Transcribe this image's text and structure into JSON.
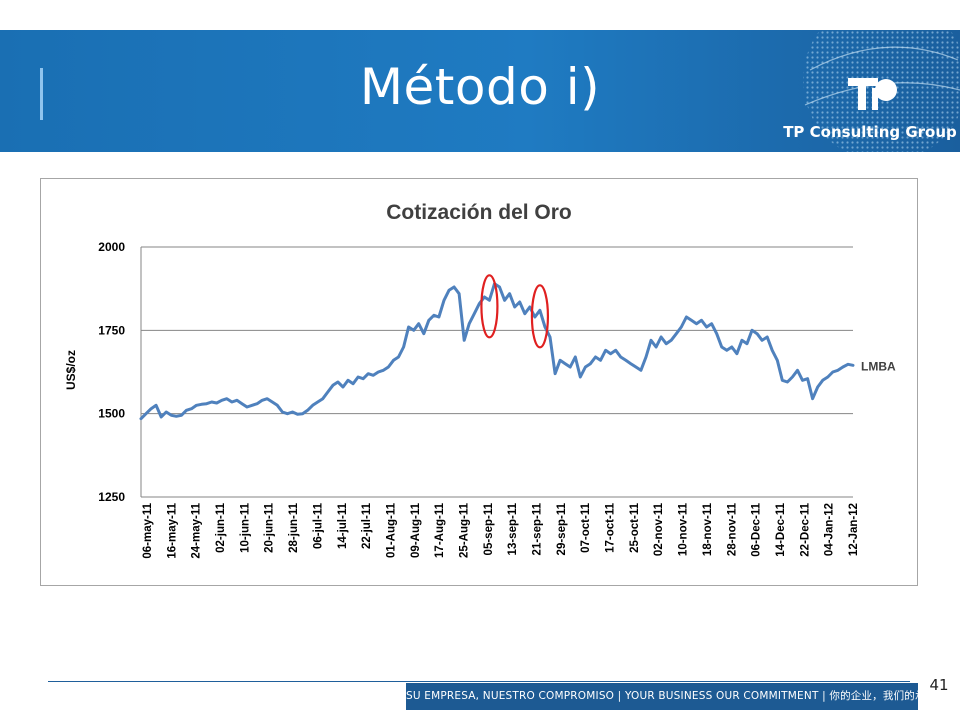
{
  "slide": {
    "title": "Método i)",
    "brand": "TP Consulting Group",
    "footer": "SU EMPRESA, NUESTRO COMPROMISO | YOUR BUSINESS OUR COMMITMENT | 你的企业，我们的承诺",
    "page_number": "41"
  },
  "colors": {
    "header_bg": "#1f7bc2",
    "series": "#4f81bd",
    "highlight": "#e02020",
    "footer_bg": "#1d5a93"
  },
  "chart_data": {
    "type": "line",
    "title": "Cotización del Oro",
    "ylabel": "US$/oz",
    "ylim": [
      1250,
      2000
    ],
    "yticks": [
      1250,
      1500,
      1750,
      2000
    ],
    "grid": true,
    "xtick_labels": [
      "06-may-11",
      "16-may-11",
      "24-may-11",
      "02-jun-11",
      "10-jun-11",
      "20-jun-11",
      "28-jun-11",
      "06-jul-11",
      "14-jul-11",
      "22-jul-11",
      "01-Aug-11",
      "09-Aug-11",
      "17-Aug-11",
      "25-Aug-11",
      "05-sep-11",
      "13-sep-11",
      "21-sep-11",
      "29-sep-11",
      "07-oct-11",
      "17-oct-11",
      "25-oct-11",
      "02-nov-11",
      "10-nov-11",
      "18-nov-11",
      "28-nov-11",
      "06-Dec-11",
      "14-Dec-11",
      "22-Dec-11",
      "04-Jan-12",
      "12-Jan-12"
    ],
    "series": [
      {
        "name": "LMBA",
        "values": [
          1485,
          1500,
          1515,
          1525,
          1490,
          1505,
          1495,
          1492,
          1495,
          1510,
          1515,
          1525,
          1528,
          1530,
          1535,
          1532,
          1540,
          1545,
          1535,
          1540,
          1530,
          1520,
          1525,
          1530,
          1540,
          1545,
          1535,
          1525,
          1505,
          1500,
          1505,
          1498,
          1500,
          1510,
          1525,
          1535,
          1545,
          1565,
          1585,
          1595,
          1580,
          1600,
          1590,
          1610,
          1605,
          1620,
          1615,
          1625,
          1630,
          1640,
          1660,
          1670,
          1700,
          1760,
          1750,
          1770,
          1740,
          1780,
          1795,
          1790,
          1840,
          1870,
          1880,
          1860,
          1720,
          1770,
          1800,
          1830,
          1850,
          1840,
          1890,
          1880,
          1840,
          1860,
          1820,
          1835,
          1800,
          1820,
          1790,
          1810,
          1760,
          1730,
          1620,
          1660,
          1650,
          1640,
          1670,
          1610,
          1640,
          1650,
          1670,
          1660,
          1690,
          1680,
          1690,
          1670,
          1660,
          1650,
          1640,
          1630,
          1670,
          1720,
          1700,
          1730,
          1710,
          1720,
          1740,
          1760,
          1790,
          1780,
          1770,
          1780,
          1760,
          1770,
          1740,
          1700,
          1690,
          1700,
          1680,
          1720,
          1710,
          1750,
          1740,
          1720,
          1730,
          1690,
          1660,
          1600,
          1595,
          1610,
          1630,
          1600,
          1605,
          1545,
          1580,
          1600,
          1610,
          1625,
          1630,
          1640,
          1648,
          1645
        ]
      }
    ],
    "annotations": [
      {
        "type": "ellipse",
        "at_value_index": 69
      },
      {
        "type": "ellipse",
        "at_value_index": 79
      }
    ]
  }
}
